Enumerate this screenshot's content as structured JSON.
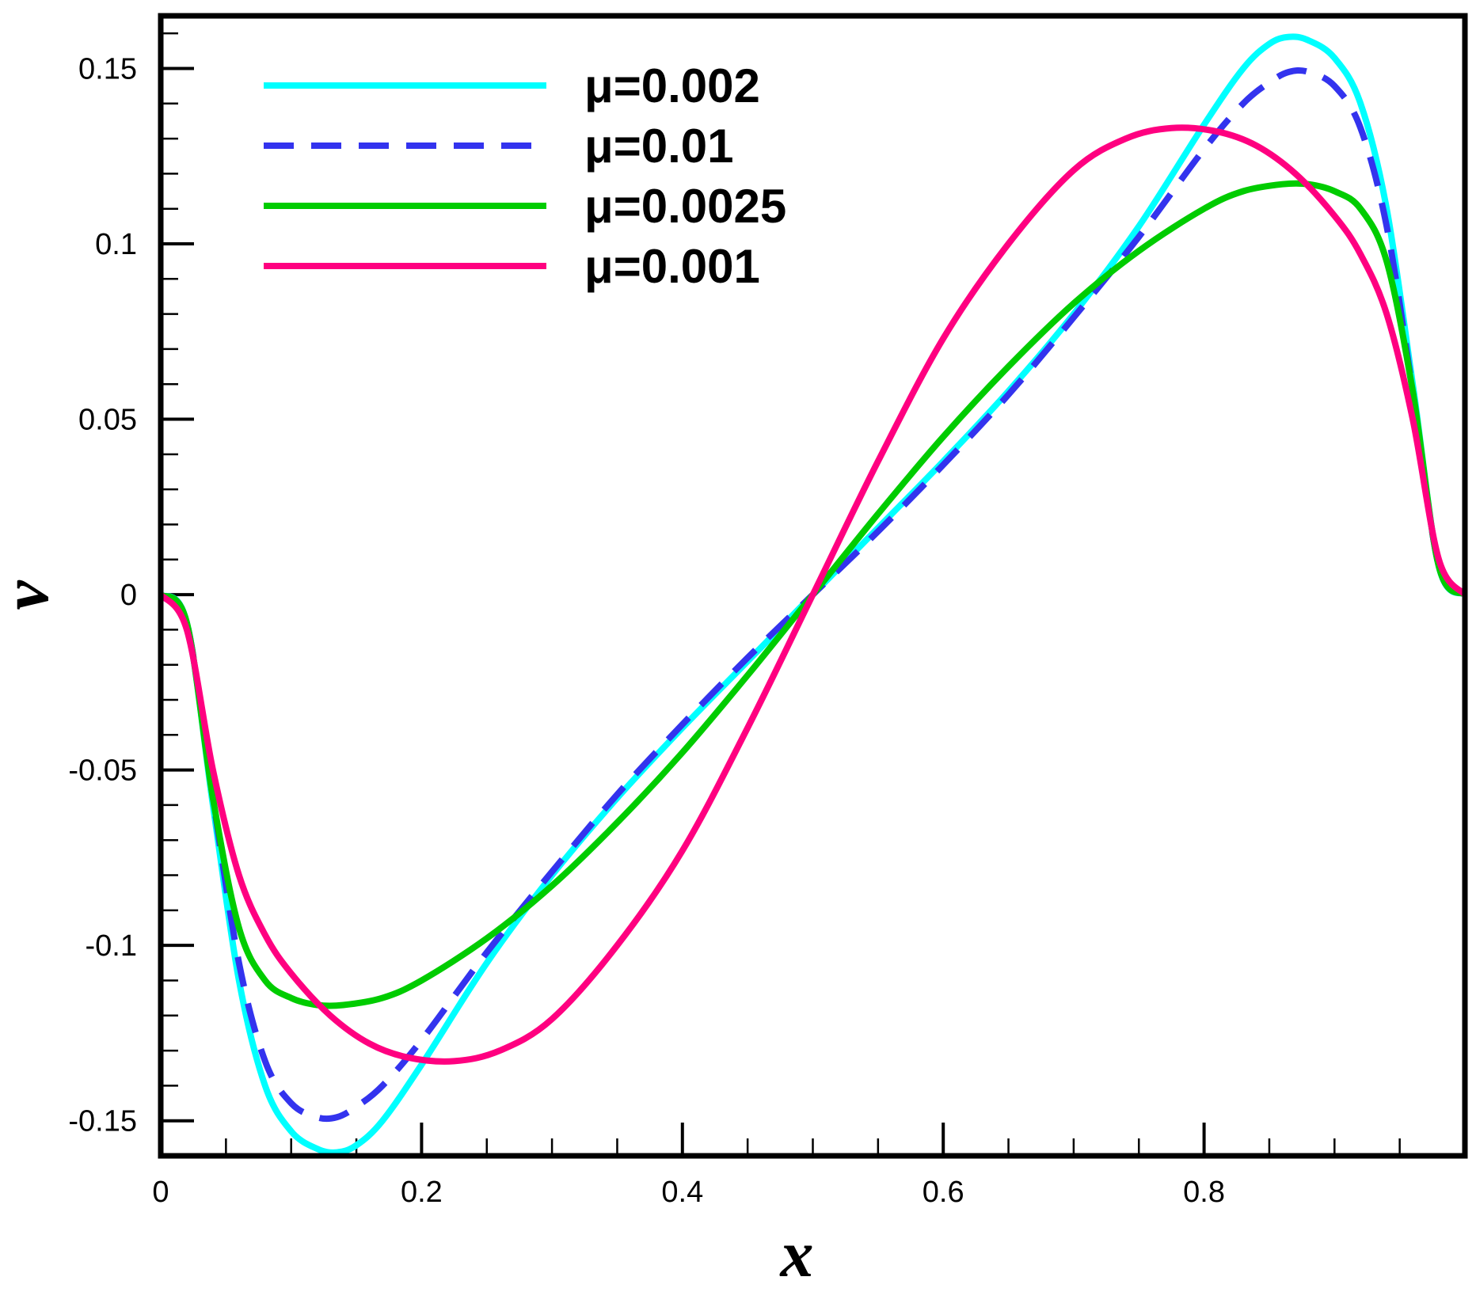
{
  "chart_data": {
    "type": "line",
    "title": "",
    "xlabel": "x",
    "ylabel": "v",
    "xlim": [
      0,
      1
    ],
    "ylim": [
      -0.16,
      0.165
    ],
    "grid": false,
    "legend_position": "top-left",
    "x_ticks": [
      {
        "value": 0,
        "label": "0"
      },
      {
        "value": 0.2,
        "label": "0.2"
      },
      {
        "value": 0.4,
        "label": "0.4"
      },
      {
        "value": 0.6,
        "label": "0.6"
      },
      {
        "value": 0.8,
        "label": "0.8"
      }
    ],
    "y_ticks": [
      {
        "value": -0.15,
        "label": "-0.15"
      },
      {
        "value": -0.1,
        "label": "-0.1"
      },
      {
        "value": -0.05,
        "label": "-0.05"
      },
      {
        "value": 0,
        "label": "0"
      },
      {
        "value": 0.05,
        "label": "0.05"
      },
      {
        "value": 0.1,
        "label": "0.1"
      },
      {
        "value": 0.15,
        "label": "0.15"
      }
    ],
    "series": [
      {
        "name": "μ=0.002",
        "color": "#00ffff",
        "dash": "solid",
        "x": [
          0,
          0.02,
          0.04,
          0.06,
          0.08,
          0.1,
          0.12,
          0.135,
          0.15,
          0.17,
          0.2,
          0.25,
          0.3,
          0.35,
          0.4,
          0.45,
          0.5,
          0.55,
          0.6,
          0.65,
          0.7,
          0.75,
          0.8,
          0.83,
          0.85,
          0.865,
          0.88,
          0.9,
          0.92,
          0.94,
          0.96,
          0.98,
          1.0
        ],
        "values": [
          0,
          -0.008,
          -0.06,
          -0.11,
          -0.14,
          -0.153,
          -0.158,
          -0.159,
          -0.157,
          -0.15,
          -0.134,
          -0.105,
          -0.08,
          -0.058,
          -0.038,
          -0.019,
          0,
          0.019,
          0.038,
          0.058,
          0.08,
          0.105,
          0.134,
          0.15,
          0.157,
          0.159,
          0.158,
          0.153,
          0.14,
          0.11,
          0.06,
          0.008,
          0
        ]
      },
      {
        "name": "μ=0.01",
        "color": "#3333ee",
        "dash": "dashed",
        "x": [
          0,
          0.02,
          0.04,
          0.06,
          0.08,
          0.1,
          0.12,
          0.135,
          0.15,
          0.17,
          0.2,
          0.25,
          0.3,
          0.35,
          0.4,
          0.45,
          0.5,
          0.55,
          0.6,
          0.65,
          0.7,
          0.75,
          0.8,
          0.83,
          0.85,
          0.865,
          0.88,
          0.9,
          0.92,
          0.94,
          0.96,
          0.98,
          1.0
        ],
        "values": [
          0,
          -0.008,
          -0.058,
          -0.105,
          -0.133,
          -0.145,
          -0.149,
          -0.149,
          -0.146,
          -0.14,
          -0.127,
          -0.102,
          -0.079,
          -0.057,
          -0.037,
          -0.018,
          0,
          0.018,
          0.037,
          0.057,
          0.079,
          0.102,
          0.127,
          0.14,
          0.146,
          0.149,
          0.149,
          0.145,
          0.133,
          0.105,
          0.058,
          0.008,
          0
        ]
      },
      {
        "name": "μ=0.0025",
        "color": "#00cc00",
        "dash": "solid",
        "x": [
          0,
          0.02,
          0.04,
          0.06,
          0.08,
          0.1,
          0.12,
          0.14,
          0.17,
          0.2,
          0.25,
          0.3,
          0.35,
          0.4,
          0.45,
          0.5,
          0.55,
          0.6,
          0.65,
          0.7,
          0.75,
          0.8,
          0.83,
          0.86,
          0.88,
          0.9,
          0.92,
          0.94,
          0.96,
          0.98,
          1.0
        ],
        "values": [
          0,
          -0.008,
          -0.058,
          -0.095,
          -0.11,
          -0.115,
          -0.117,
          -0.117,
          -0.115,
          -0.11,
          -0.098,
          -0.083,
          -0.065,
          -0.045,
          -0.023,
          0,
          0.023,
          0.045,
          0.065,
          0.083,
          0.098,
          0.11,
          0.115,
          0.117,
          0.117,
          0.115,
          0.11,
          0.095,
          0.058,
          0.008,
          0
        ]
      },
      {
        "name": "μ=0.001",
        "color": "#ff0080",
        "dash": "solid",
        "x": [
          0,
          0.02,
          0.04,
          0.06,
          0.08,
          0.1,
          0.13,
          0.16,
          0.19,
          0.225,
          0.26,
          0.3,
          0.35,
          0.4,
          0.45,
          0.5,
          0.55,
          0.6,
          0.65,
          0.7,
          0.74,
          0.775,
          0.81,
          0.84,
          0.87,
          0.9,
          0.92,
          0.94,
          0.96,
          0.98,
          1.0
        ],
        "values": [
          0,
          -0.01,
          -0.05,
          -0.08,
          -0.097,
          -0.108,
          -0.12,
          -0.128,
          -0.132,
          -0.133,
          -0.13,
          -0.121,
          -0.1,
          -0.073,
          -0.038,
          0,
          0.038,
          0.073,
          0.1,
          0.121,
          0.13,
          0.133,
          0.132,
          0.128,
          0.12,
          0.108,
          0.097,
          0.08,
          0.05,
          0.01,
          0
        ]
      }
    ]
  }
}
